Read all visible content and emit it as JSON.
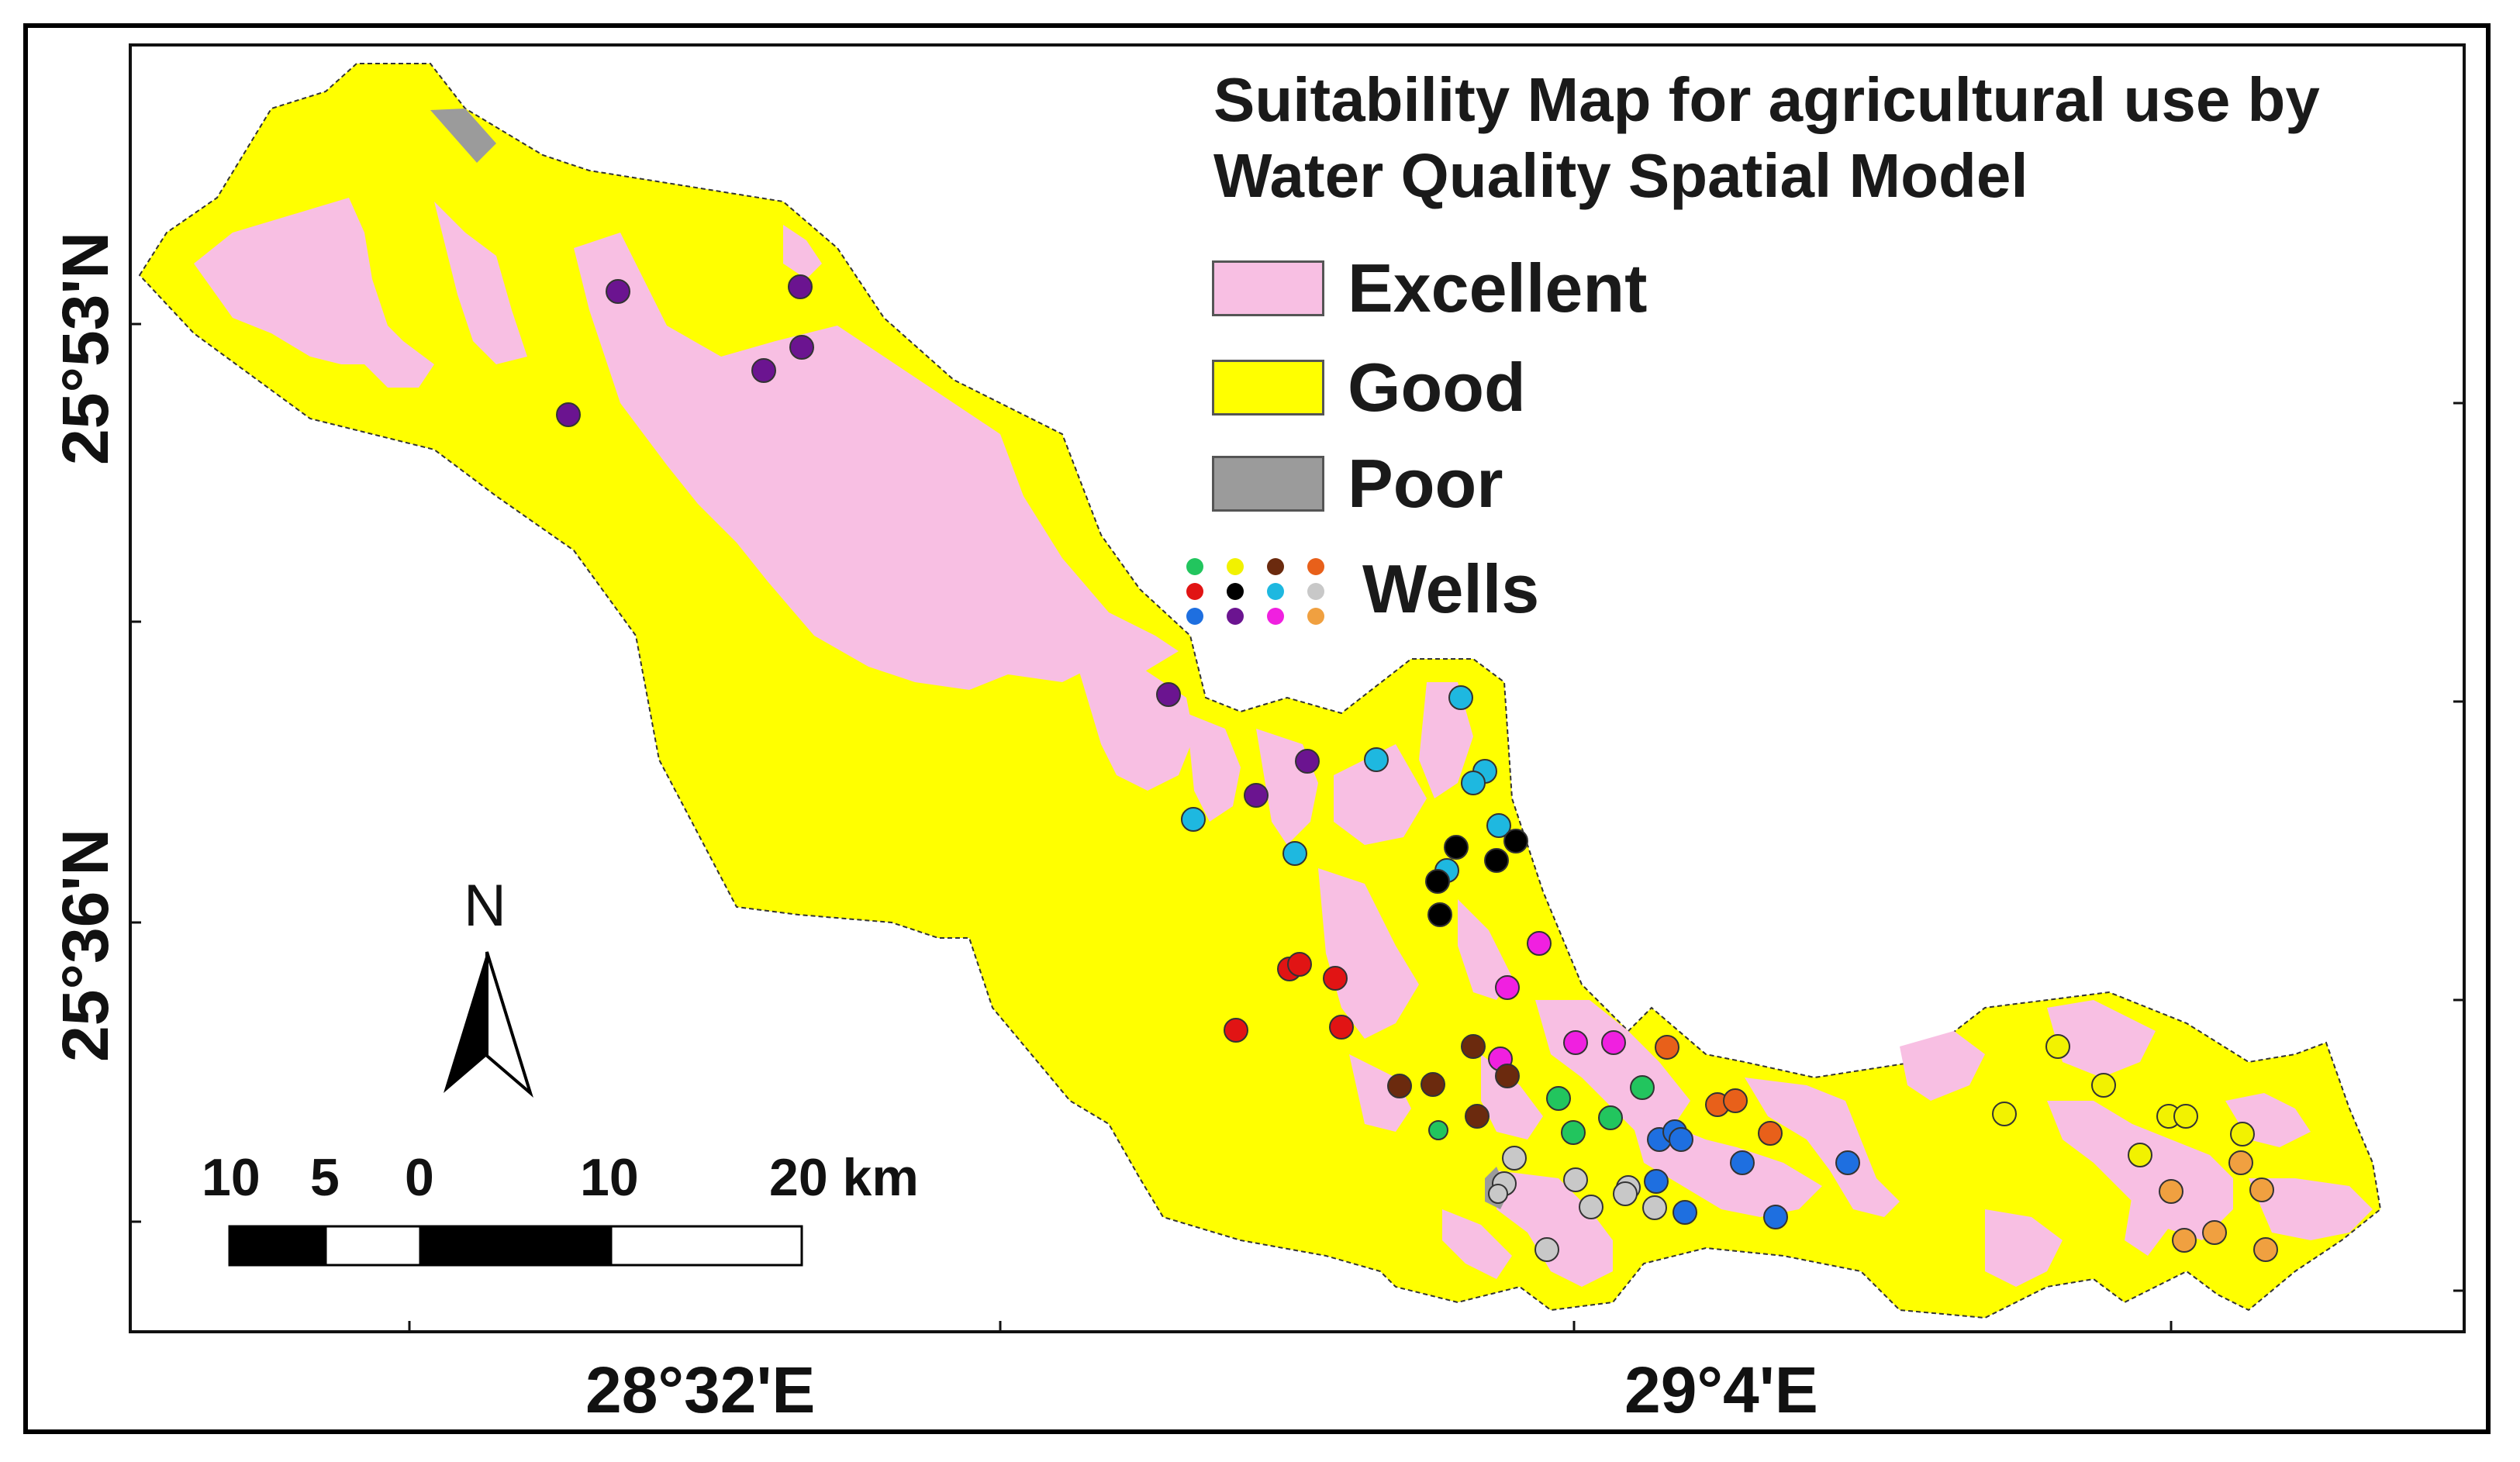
{
  "title_line1": "Suitability Map for agricultural use by",
  "title_line2": "Water Quality Spatial Model",
  "legend": {
    "excellent": {
      "label": "Excellent",
      "color": "#F8BFE3"
    },
    "good": {
      "label": "Good",
      "color": "#FFFF00"
    },
    "poor": {
      "label": "Poor",
      "color": "#9B9B9B"
    },
    "wells": {
      "label": "Wells"
    }
  },
  "well_colors": [
    "#22C55E",
    "#F2F200",
    "#6B2A0E",
    "#E8601A",
    "#E11414",
    "#000000",
    "#1EB8E0",
    "#C8C8C8",
    "#1E6FE0",
    "#6B1490",
    "#F020E0",
    "#F0A040"
  ],
  "lat_labels": [
    "25°53'N",
    "25°36'N"
  ],
  "lon_labels": [
    "28°32'E",
    "29°4'E"
  ],
  "north_label": "N",
  "scale": {
    "ticks": [
      "10",
      "5",
      "0",
      "10",
      "20 km"
    ]
  }
}
